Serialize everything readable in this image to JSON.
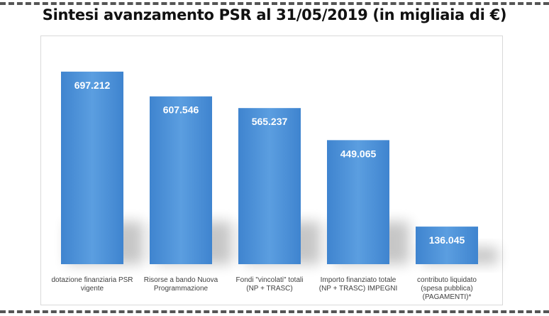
{
  "title": "Sintesi avanzamento PSR al 31/05/2019 (in migliaia di €)",
  "chart_data": {
    "type": "bar",
    "categories": [
      [
        "dotazione finanziaria PSR",
        "vigente"
      ],
      [
        "Risorse a bando Nuova",
        "Programmazione"
      ],
      [
        "Fondi \"vincolati\" totali",
        "(NP + TRASC)"
      ],
      [
        "Importo finanziato totale",
        "(NP + TRASC) IMPEGNI"
      ],
      [
        "contributo liquidato",
        "(spesa pubblica)",
        "(PAGAMENTI)*"
      ]
    ],
    "values": [
      697212,
      607546,
      565237,
      449065,
      136045
    ],
    "value_labels": [
      "697.212",
      "607.546",
      "565.237",
      "449.065",
      "136.045"
    ],
    "ylim": [
      0,
      720000
    ],
    "bar_color": "#4a8fd6",
    "grid": false,
    "legend": false
  }
}
